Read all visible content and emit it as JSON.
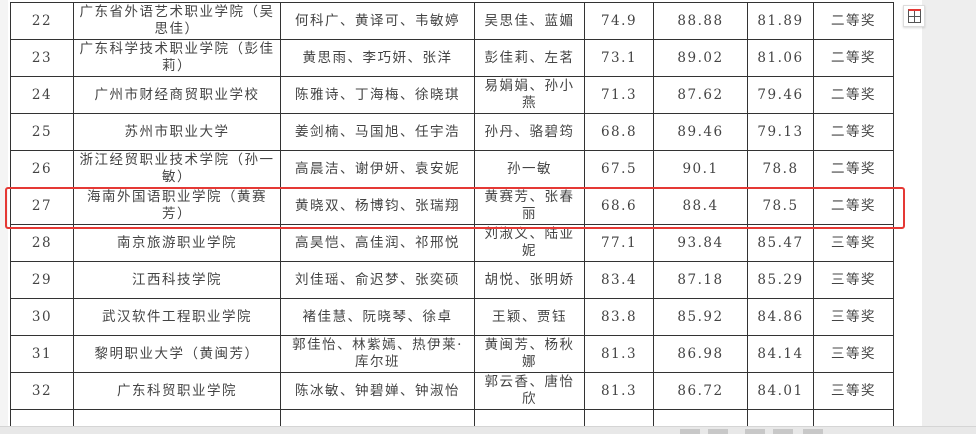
{
  "table": {
    "rows": [
      {
        "no": "22",
        "school": "广东省外语艺术职业学院（吴思佳）",
        "students": "何科广、黄译可、韦敏婷",
        "teachers": "吴思佳、蓝媚",
        "score1": "74.9",
        "score2": "88.88",
        "total": "81.89",
        "award": "二等奖"
      },
      {
        "no": "23",
        "school": "广东科学技术职业学院（彭佳莉）",
        "students": "黄思雨、李巧妍、张洋",
        "teachers": "彭佳莉、左茗",
        "score1": "73.1",
        "score2": "89.02",
        "total": "81.06",
        "award": "二等奖"
      },
      {
        "no": "24",
        "school": "广州市财经商贸职业学校",
        "students": "陈雅诗、丁海梅、徐晓琪",
        "teachers": "易娟娟、孙小燕",
        "score1": "71.3",
        "score2": "87.62",
        "total": "79.46",
        "award": "二等奖"
      },
      {
        "no": "25",
        "school": "苏州市职业大学",
        "students": "姜剑楠、马国旭、任宇浩",
        "teachers": "孙丹、骆碧筠",
        "score1": "68.8",
        "score2": "89.46",
        "total": "79.13",
        "award": "二等奖"
      },
      {
        "no": "26",
        "school": "浙江经贸职业技术学院（孙一敏）",
        "students": "高晨洁、谢伊妍、袁安妮",
        "teachers": "孙一敏",
        "score1": "67.5",
        "score2": "90.1",
        "total": "78.8",
        "award": "二等奖"
      },
      {
        "no": "27",
        "school": "海南外国语职业学院（黄赛芳）",
        "students": "黄晓双、杨博钧、张瑞翔",
        "teachers": "黄赛芳、张春丽",
        "score1": "68.6",
        "score2": "88.4",
        "total": "78.5",
        "award": "二等奖"
      },
      {
        "no": "28",
        "school": "南京旅游职业学院",
        "students": "高昊恺、高佳润、祁邢悦",
        "teachers": "刘淑义、陆亚妮",
        "score1": "77.1",
        "score2": "93.84",
        "total": "85.47",
        "award": "三等奖"
      },
      {
        "no": "29",
        "school": "江西科技学院",
        "students": "刘佳瑶、俞迟梦、张奕硕",
        "teachers": "胡悦、张明娇",
        "score1": "83.4",
        "score2": "87.18",
        "total": "85.29",
        "award": "三等奖"
      },
      {
        "no": "30",
        "school": "武汉软件工程职业学院",
        "students": "褚佳慧、阮晓琴、徐卓",
        "teachers": "王颖、贾钰",
        "score1": "83.8",
        "score2": "85.92",
        "total": "84.86",
        "award": "三等奖"
      },
      {
        "no": "31",
        "school": "黎明职业大学（黄闽芳）",
        "students": "郭佳怡、林紫嫣、热伊莱·库尔班",
        "teachers": "黄闽芳、杨秋娜",
        "score1": "81.3",
        "score2": "86.98",
        "total": "84.14",
        "award": "三等奖"
      },
      {
        "no": "32",
        "school": "广东科贸职业学院",
        "students": "陈冰敏、钟碧婵、钟淑怡",
        "teachers": "郭云香、唐怡欣",
        "score1": "81.3",
        "score2": "86.72",
        "total": "84.01",
        "award": "三等奖"
      }
    ]
  },
  "highlight": {
    "row": "27",
    "color": "#e53935"
  },
  "toolbar": {
    "icon": "table-extract-icon"
  }
}
